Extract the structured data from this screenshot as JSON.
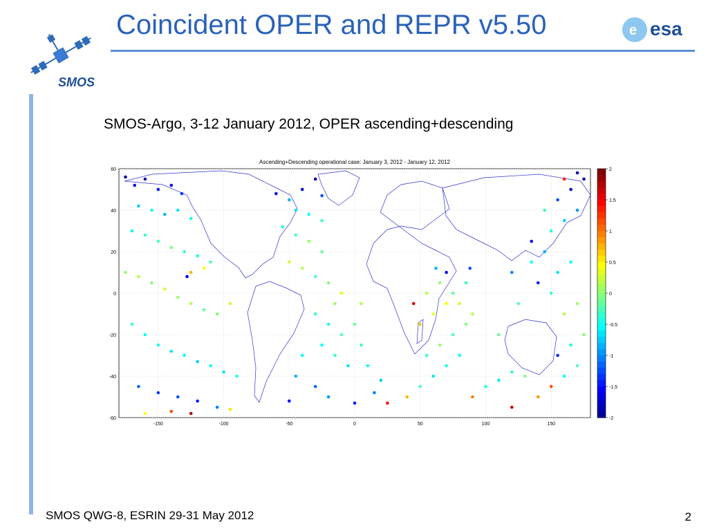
{
  "slide": {
    "title": "Coincident OPER and REPR v5.50",
    "subtitle": "SMOS-Argo, 3-12 January 2012, OPER ascending+descending",
    "footer": "SMOS QWG-8, ESRIN 29-31 May 2012",
    "page_number": "2",
    "logos": {
      "left": "SMOS",
      "right": "esa"
    },
    "colors": {
      "title": "#2a62b8",
      "rule": "#5b8fd6",
      "side_rule": "#8fb4e8"
    }
  },
  "chart_data": {
    "type": "scatter",
    "title": "Ascending+Descending operational case: January 3, 2012 - January 12, 2012",
    "xlabel": "",
    "ylabel": "",
    "xlim": [
      -180,
      180
    ],
    "ylim": [
      -60,
      60
    ],
    "x_ticks": [
      -150,
      -100,
      -50,
      0,
      50,
      100,
      150
    ],
    "y_ticks": [
      60,
      40,
      20,
      0,
      -20,
      -40,
      -60
    ],
    "grid": true,
    "colorbar": {
      "colormap": "jet",
      "range": [
        -2,
        2
      ],
      "ticks": [
        2,
        1.5,
        1,
        0.5,
        0,
        -0.5,
        -1,
        -1.5,
        -2
      ]
    },
    "points": [
      {
        "lon": -175,
        "lat": 56,
        "v": -1.8
      },
      {
        "lon": -168,
        "lat": 52,
        "v": -1.6
      },
      {
        "lon": -160,
        "lat": 55,
        "v": -1.7
      },
      {
        "lon": -150,
        "lat": 50,
        "v": -1.4
      },
      {
        "lon": -140,
        "lat": 52,
        "v": -1.5
      },
      {
        "lon": -132,
        "lat": 48,
        "v": -1.3
      },
      {
        "lon": -165,
        "lat": 42,
        "v": -0.7
      },
      {
        "lon": -155,
        "lat": 40,
        "v": -0.5
      },
      {
        "lon": -145,
        "lat": 38,
        "v": -0.8
      },
      {
        "lon": -135,
        "lat": 40,
        "v": -0.6
      },
      {
        "lon": -125,
        "lat": 36,
        "v": -0.4
      },
      {
        "lon": -170,
        "lat": 30,
        "v": -0.5
      },
      {
        "lon": -160,
        "lat": 28,
        "v": -0.3
      },
      {
        "lon": -150,
        "lat": 25,
        "v": -0.2
      },
      {
        "lon": -140,
        "lat": 22,
        "v": 0.0
      },
      {
        "lon": -130,
        "lat": 20,
        "v": -0.3
      },
      {
        "lon": -120,
        "lat": 18,
        "v": -0.4
      },
      {
        "lon": -110,
        "lat": 15,
        "v": -0.2
      },
      {
        "lon": -175,
        "lat": 10,
        "v": 0.1
      },
      {
        "lon": -165,
        "lat": 8,
        "v": 0.2
      },
      {
        "lon": -155,
        "lat": 5,
        "v": 0.0
      },
      {
        "lon": -145,
        "lat": 2,
        "v": 0.3
      },
      {
        "lon": -135,
        "lat": -2,
        "v": 0.1
      },
      {
        "lon": -125,
        "lat": -5,
        "v": 0.2
      },
      {
        "lon": -115,
        "lat": -8,
        "v": -0.1
      },
      {
        "lon": -105,
        "lat": -10,
        "v": 0.0
      },
      {
        "lon": -95,
        "lat": -5,
        "v": 0.3
      },
      {
        "lon": -170,
        "lat": -15,
        "v": -0.3
      },
      {
        "lon": -160,
        "lat": -20,
        "v": -0.5
      },
      {
        "lon": -150,
        "lat": -25,
        "v": -0.4
      },
      {
        "lon": -140,
        "lat": -28,
        "v": -0.6
      },
      {
        "lon": -130,
        "lat": -30,
        "v": -0.5
      },
      {
        "lon": -120,
        "lat": -33,
        "v": -0.7
      },
      {
        "lon": -110,
        "lat": -35,
        "v": -0.5
      },
      {
        "lon": -100,
        "lat": -38,
        "v": -0.6
      },
      {
        "lon": -90,
        "lat": -40,
        "v": -0.4
      },
      {
        "lon": -165,
        "lat": -45,
        "v": -1.1
      },
      {
        "lon": -150,
        "lat": -48,
        "v": -1.3
      },
      {
        "lon": -135,
        "lat": -50,
        "v": -1.2
      },
      {
        "lon": -120,
        "lat": -52,
        "v": -1.4
      },
      {
        "lon": -105,
        "lat": -55,
        "v": -1.0
      },
      {
        "lon": -160,
        "lat": -58,
        "v": 0.5
      },
      {
        "lon": -140,
        "lat": -57,
        "v": 1.2
      },
      {
        "lon": -125,
        "lat": -58,
        "v": 1.8
      },
      {
        "lon": -95,
        "lat": -56,
        "v": 0.6
      },
      {
        "lon": -115,
        "lat": 12,
        "v": 0.5
      },
      {
        "lon": -125,
        "lat": 10,
        "v": 0.8
      },
      {
        "lon": -128,
        "lat": 8,
        "v": -1.6
      },
      {
        "lon": -60,
        "lat": 48,
        "v": -1.5
      },
      {
        "lon": -50,
        "lat": 45,
        "v": -0.8
      },
      {
        "lon": -40,
        "lat": 50,
        "v": -1.7
      },
      {
        "lon": -30,
        "lat": 55,
        "v": -1.8
      },
      {
        "lon": -25,
        "lat": 47,
        "v": -1.2
      },
      {
        "lon": -45,
        "lat": 40,
        "v": -0.6
      },
      {
        "lon": -35,
        "lat": 38,
        "v": -0.5
      },
      {
        "lon": -25,
        "lat": 35,
        "v": -0.3
      },
      {
        "lon": -55,
        "lat": 32,
        "v": -0.4
      },
      {
        "lon": -45,
        "lat": 28,
        "v": -0.2
      },
      {
        "lon": -35,
        "lat": 25,
        "v": 0.1
      },
      {
        "lon": -25,
        "lat": 20,
        "v": -0.1
      },
      {
        "lon": -50,
        "lat": 15,
        "v": 0.3
      },
      {
        "lon": -40,
        "lat": 12,
        "v": 0.2
      },
      {
        "lon": -30,
        "lat": 8,
        "v": -0.2
      },
      {
        "lon": -20,
        "lat": 5,
        "v": 0.0
      },
      {
        "lon": -10,
        "lat": 0,
        "v": 0.4
      },
      {
        "lon": -15,
        "lat": -5,
        "v": 0.1
      },
      {
        "lon": -30,
        "lat": -10,
        "v": -0.3
      },
      {
        "lon": -20,
        "lat": -15,
        "v": -0.4
      },
      {
        "lon": -10,
        "lat": -20,
        "v": -0.2
      },
      {
        "lon": -25,
        "lat": -25,
        "v": -0.5
      },
      {
        "lon": -15,
        "lat": -30,
        "v": -0.3
      },
      {
        "lon": -5,
        "lat": -35,
        "v": -0.6
      },
      {
        "lon": -40,
        "lat": -30,
        "v": -0.5
      },
      {
        "lon": -45,
        "lat": -40,
        "v": -0.8
      },
      {
        "lon": -30,
        "lat": -45,
        "v": -1.1
      },
      {
        "lon": -20,
        "lat": -50,
        "v": -0.9
      },
      {
        "lon": 0,
        "lat": -53,
        "v": -1.4
      },
      {
        "lon": -50,
        "lat": -52,
        "v": -1.5
      },
      {
        "lon": 5,
        "lat": -5,
        "v": 0.2
      },
      {
        "lon": 0,
        "lat": -15,
        "v": -0.1
      },
      {
        "lon": 5,
        "lat": -25,
        "v": -0.3
      },
      {
        "lon": 10,
        "lat": -35,
        "v": -0.5
      },
      {
        "lon": 20,
        "lat": -42,
        "v": -0.7
      },
      {
        "lon": 15,
        "lat": -48,
        "v": -1.0
      },
      {
        "lon": 25,
        "lat": -53,
        "v": 1.5
      },
      {
        "lon": 40,
        "lat": -50,
        "v": 0.8
      },
      {
        "lon": 50,
        "lat": -45,
        "v": -0.2
      },
      {
        "lon": 60,
        "lat": -40,
        "v": -0.6
      },
      {
        "lon": 70,
        "lat": -35,
        "v": -0.4
      },
      {
        "lon": 80,
        "lat": -30,
        "v": -0.5
      },
      {
        "lon": 55,
        "lat": -30,
        "v": -0.3
      },
      {
        "lon": 65,
        "lat": -25,
        "v": 0.1
      },
      {
        "lon": 75,
        "lat": -20,
        "v": -0.2
      },
      {
        "lon": 85,
        "lat": -15,
        "v": 0.0
      },
      {
        "lon": 90,
        "lat": -10,
        "v": 0.2
      },
      {
        "lon": 80,
        "lat": -5,
        "v": 0.3
      },
      {
        "lon": 60,
        "lat": -10,
        "v": 0.4
      },
      {
        "lon": 70,
        "lat": -5,
        "v": 0.5
      },
      {
        "lon": 55,
        "lat": 0,
        "v": 0.2
      },
      {
        "lon": 65,
        "lat": 5,
        "v": 0.1
      },
      {
        "lon": 75,
        "lat": 0,
        "v": -0.1
      },
      {
        "lon": 85,
        "lat": 5,
        "v": -0.3
      },
      {
        "lon": 88,
        "lat": 12,
        "v": -1.2
      },
      {
        "lon": 62,
        "lat": 12,
        "v": -0.8
      },
      {
        "lon": 70,
        "lat": 10,
        "v": -1.5
      },
      {
        "lon": 45,
        "lat": -5,
        "v": 1.6
      },
      {
        "lon": 50,
        "lat": -15,
        "v": 0.7
      },
      {
        "lon": 100,
        "lat": -45,
        "v": -0.4
      },
      {
        "lon": 110,
        "lat": -42,
        "v": -0.6
      },
      {
        "lon": 120,
        "lat": -38,
        "v": -0.3
      },
      {
        "lon": 130,
        "lat": -40,
        "v": 0.0
      },
      {
        "lon": 90,
        "lat": -50,
        "v": 1.0
      },
      {
        "lon": 120,
        "lat": -55,
        "v": 1.7
      },
      {
        "lon": 140,
        "lat": -50,
        "v": 0.9
      },
      {
        "lon": 150,
        "lat": -45,
        "v": 1.2
      },
      {
        "lon": 160,
        "lat": -40,
        "v": -0.5
      },
      {
        "lon": 170,
        "lat": -35,
        "v": -0.2
      },
      {
        "lon": 155,
        "lat": -30,
        "v": -1.3
      },
      {
        "lon": 165,
        "lat": -25,
        "v": -0.4
      },
      {
        "lon": 175,
        "lat": -20,
        "v": 0.0
      },
      {
        "lon": 160,
        "lat": -10,
        "v": 0.2
      },
      {
        "lon": 170,
        "lat": -5,
        "v": 0.1
      },
      {
        "lon": 150,
        "lat": 0,
        "v": -0.3
      },
      {
        "lon": 140,
        "lat": 5,
        "v": -1.4
      },
      {
        "lon": 155,
        "lat": 10,
        "v": -0.6
      },
      {
        "lon": 165,
        "lat": 15,
        "v": -0.5
      },
      {
        "lon": 145,
        "lat": 20,
        "v": -0.8
      },
      {
        "lon": 135,
        "lat": 25,
        "v": -1.5
      },
      {
        "lon": 150,
        "lat": 30,
        "v": -0.4
      },
      {
        "lon": 160,
        "lat": 35,
        "v": -0.7
      },
      {
        "lon": 170,
        "lat": 40,
        "v": -0.9
      },
      {
        "lon": 155,
        "lat": 45,
        "v": -1.2
      },
      {
        "lon": 165,
        "lat": 50,
        "v": -1.6
      },
      {
        "lon": 175,
        "lat": 55,
        "v": -1.9
      },
      {
        "lon": 160,
        "lat": 55,
        "v": 1.4
      },
      {
        "lon": 170,
        "lat": 58,
        "v": -1.8
      },
      {
        "lon": 145,
        "lat": 40,
        "v": -0.3
      },
      {
        "lon": 135,
        "lat": 15,
        "v": -0.5
      },
      {
        "lon": 120,
        "lat": 10,
        "v": -1.0
      },
      {
        "lon": 125,
        "lat": -5,
        "v": -0.2
      },
      {
        "lon": 110,
        "lat": -20,
        "v": -0.1
      }
    ]
  }
}
